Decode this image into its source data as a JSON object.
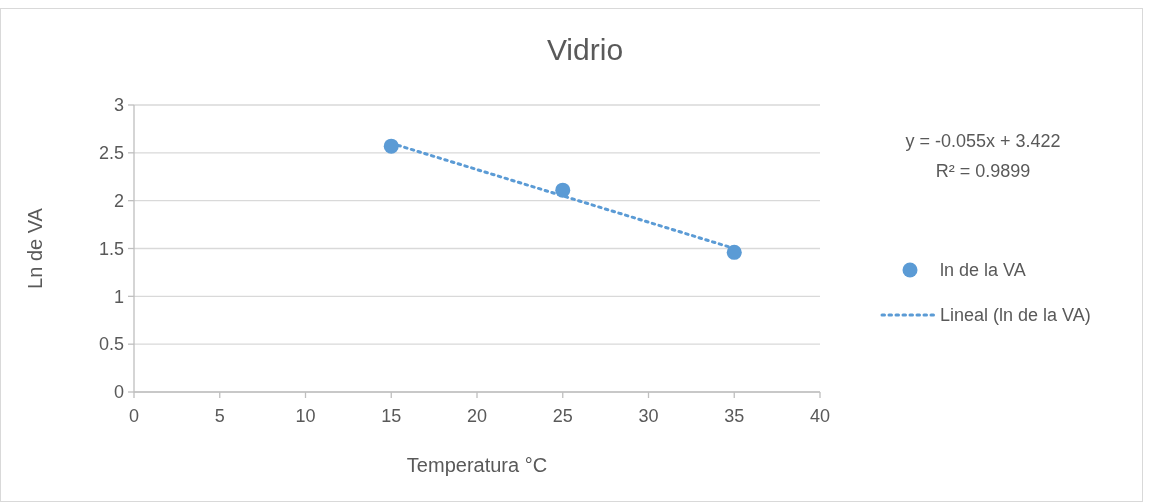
{
  "chart_data": {
    "type": "scatter",
    "title": "Vidrio",
    "xlabel": "Temperatura °C",
    "ylabel": "Ln de VA",
    "xlim": [
      0,
      40
    ],
    "xticks": [
      0,
      5,
      10,
      15,
      20,
      25,
      30,
      35,
      40
    ],
    "ylim": [
      0,
      3
    ],
    "yticks": [
      0,
      0.5,
      1,
      1.5,
      2,
      2.5,
      3
    ],
    "grid": "y",
    "legend": "right",
    "marker": "circle",
    "annotations": [
      "y = -0.055x + 3.422",
      "R² = 0.9899"
    ],
    "series": [
      {
        "name": "ln de la VA",
        "color": "#5b9bd5",
        "x": [
          15,
          25,
          35
        ],
        "values": [
          2.57,
          2.11,
          1.46
        ]
      },
      {
        "name": "Lineal (ln de la VA)",
        "type": "line",
        "line_style": "dotted",
        "marker": "none",
        "color": "#5b9bd5",
        "x": [
          15,
          35
        ],
        "values": [
          2.6,
          1.5
        ]
      }
    ]
  }
}
